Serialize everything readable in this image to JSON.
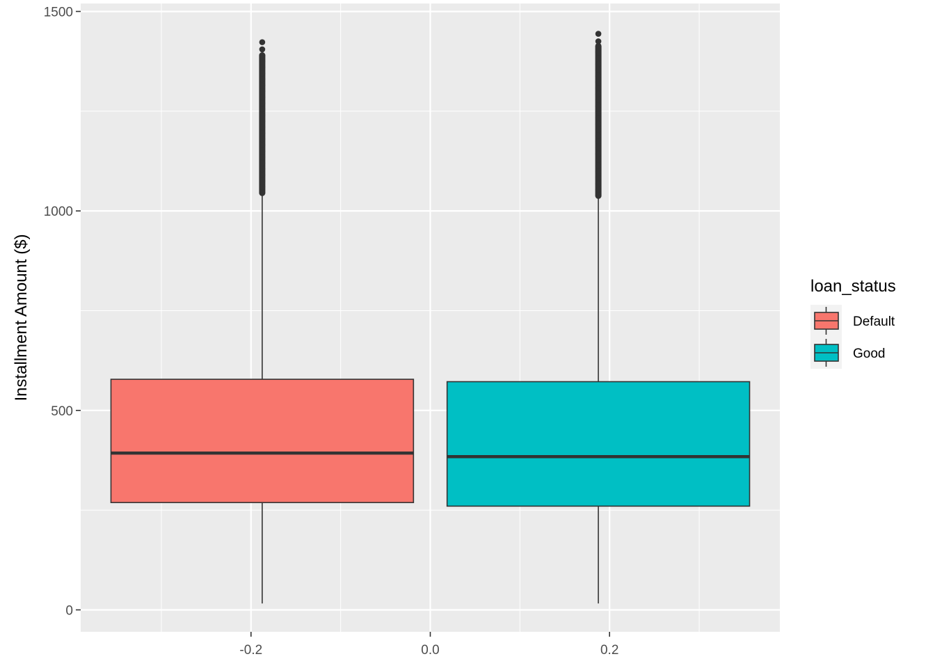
{
  "chart_data": {
    "type": "boxplot",
    "ylabel": "Installment Amount ($)",
    "xlabel": "",
    "xlim": [
      -0.39,
      0.39
    ],
    "ylim": [
      -55,
      1520
    ],
    "x_ticks": [
      -0.2,
      0.0,
      0.2
    ],
    "x_tick_labels": [
      "-0.2",
      "0.0",
      "0.2"
    ],
    "y_ticks": [
      0,
      500,
      1000,
      1500
    ],
    "y_tick_labels": [
      "0",
      "500",
      "1000",
      "1500"
    ],
    "legend": {
      "title": "loan_status",
      "position": "right"
    },
    "grid": true,
    "series": [
      {
        "name": "Default",
        "color": "#F8766D",
        "x_center": -0.1875,
        "box_width": 0.3375,
        "whisker_low": 16,
        "q1": 269,
        "median": 393,
        "q3": 578,
        "whisker_high": 1042,
        "outlier_max": 1423,
        "outliers": [
          1045,
          1060,
          1075,
          1090,
          1105,
          1120,
          1135,
          1150,
          1165,
          1180,
          1195,
          1210,
          1225,
          1240,
          1255,
          1270,
          1285,
          1300,
          1315,
          1330,
          1345,
          1360,
          1375,
          1390,
          1405,
          1423
        ]
      },
      {
        "name": "Good",
        "color": "#00BFC4",
        "x_center": 0.1875,
        "box_width": 0.3375,
        "whisker_low": 16,
        "q1": 260,
        "median": 384,
        "q3": 572,
        "whisker_high": 1035,
        "outlier_max": 1444,
        "outliers": [
          1038,
          1053,
          1068,
          1083,
          1098,
          1113,
          1128,
          1143,
          1158,
          1173,
          1188,
          1203,
          1218,
          1233,
          1248,
          1263,
          1278,
          1293,
          1308,
          1323,
          1338,
          1353,
          1368,
          1383,
          1398,
          1413,
          1425,
          1444
        ]
      }
    ]
  }
}
